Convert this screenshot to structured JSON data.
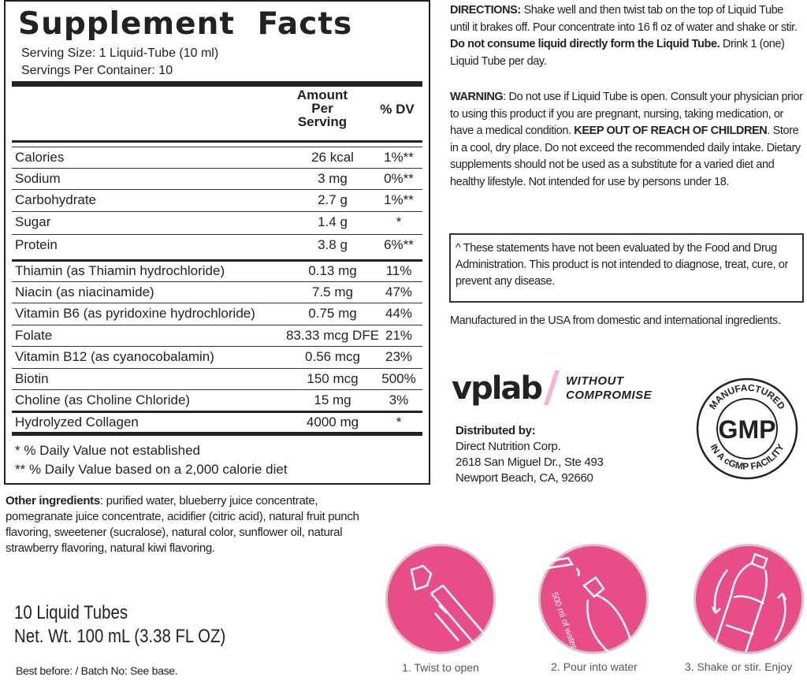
{
  "facts": {
    "title": "Supplement Facts",
    "serving_size": "Serving Size: 1 Liquid-Tube (10 ml)",
    "servings_per_container": "Servings Per Container: 10",
    "col_amount": "Amount Per Serving",
    "col_dv": "% DV",
    "rows": [
      {
        "name": "Calories",
        "amount": "26 kcal",
        "dv": "1%**"
      },
      {
        "name": "Sodium",
        "amount": "3 mg",
        "dv": "0%**"
      },
      {
        "name": "Carbohydrate",
        "amount": "2.7 g",
        "dv": "1%**"
      },
      {
        "name": "Sugar",
        "amount": "1.4 g",
        "dv": "*"
      },
      {
        "name": "Protein",
        "amount": "3.8 g",
        "dv": "6%**"
      },
      {
        "name": "Thiamin (as Thiamin hydrochloride)",
        "amount": "0.13 mg",
        "dv": "11%"
      },
      {
        "name": "Niacin (as niacinamide)",
        "amount": "7.5 mg",
        "dv": "47%"
      },
      {
        "name": "Vitamin B6 (as pyridoxine hydrochloride)",
        "amount": "0.75 mg",
        "dv": "44%"
      },
      {
        "name": "Folate",
        "amount": "83.33 mcg DFE",
        "dv": "21%"
      },
      {
        "name": "Vitamin B12 (as cyanocobalamin)",
        "amount": "0.56 mcg",
        "dv": "23%"
      },
      {
        "name": "Biotin",
        "amount": "150 mcg",
        "dv": "500%"
      },
      {
        "name": "Choline (as Choline Chloride)",
        "amount": "15 mg",
        "dv": "3%"
      },
      {
        "name": "Hydrolyzed Collagen",
        "amount": "4000 mg",
        "dv": "*"
      }
    ],
    "footnote1": "* % Daily Value not established",
    "footnote2": "** % Daily Value based on a 2,000 calorie diet"
  },
  "other": {
    "label": "Other ingredients",
    "text": ": purified water, blueberry juice concentrate, pomegranate juice concentrate, acidifier (citric acid), natural fruit punch flavoring, sweetener (sucralose), natural color, sunflower oil,  natural strawberry flavoring, natural kiwi flavoring."
  },
  "package": {
    "count": "10 Liquid Tubes",
    "net": "Net. Wt. 100 mL (3.38 FL OZ)",
    "best_before": "Best before: / Batch No: See base."
  },
  "directions": {
    "label": "DIRECTIONS:",
    "text": " Shake well and then twist tab on the top of Liquid Tube until it brakes off. Pour concentrate into 16 fl oz of water and shake or stir. ",
    "bold": "Do not consume liquid directly form the Liquid Tube.",
    "tail": "  Drink 1 (one) Liquid Tube per day."
  },
  "warning": {
    "label": "WARNING",
    "text": ": Do not use if Liquid Tube is open. Consult your physician prior to using this product if you are pregnant, nursing, taking medication, or have a medical condition. ",
    "bold": "KEEP OUT OF REACH OF CHILDREN",
    "tail": ". Store in a cool, dry place. Do not exceed the recommended daily intake. Dietary supplements should not be used as a substitute for a varied diet and healthy lifestyle. Not intended for use by persons under 18."
  },
  "disclaimer": "^ These statements have not been evaluated by the Food and Drug Administration. This product is not intended to diagnose, treat, cure, or prevent any disease.",
  "manufactured": "Manufactured in the USA from domestic and international ingredients.",
  "brand": {
    "logo": "vplab",
    "tagline1": "WITHOUT",
    "tagline2": "COMPROMISE",
    "accent": "#f4b8c8"
  },
  "distributor": {
    "label": "Distributed by:",
    "line1": "Direct Nutrition Corp.",
    "line2": "2618 San Miguel Dr., Ste 493",
    "line3": "Newport Beach, CA, 92660"
  },
  "gmp": {
    "top": "MANUFACTURED",
    "center": "GMP",
    "bottom": "IN A cGMP FACILITY"
  },
  "steps": [
    {
      "icon": "tube-twist-icon",
      "label": "1. Twist to open"
    },
    {
      "icon": "pour-bottle-icon",
      "label": "2. Pour into water",
      "inner": "500 ml of water"
    },
    {
      "icon": "shake-bottle-icon",
      "label": "3. Shake or stir. Enjoy"
    }
  ],
  "colors": {
    "pink": "#e84d87"
  }
}
